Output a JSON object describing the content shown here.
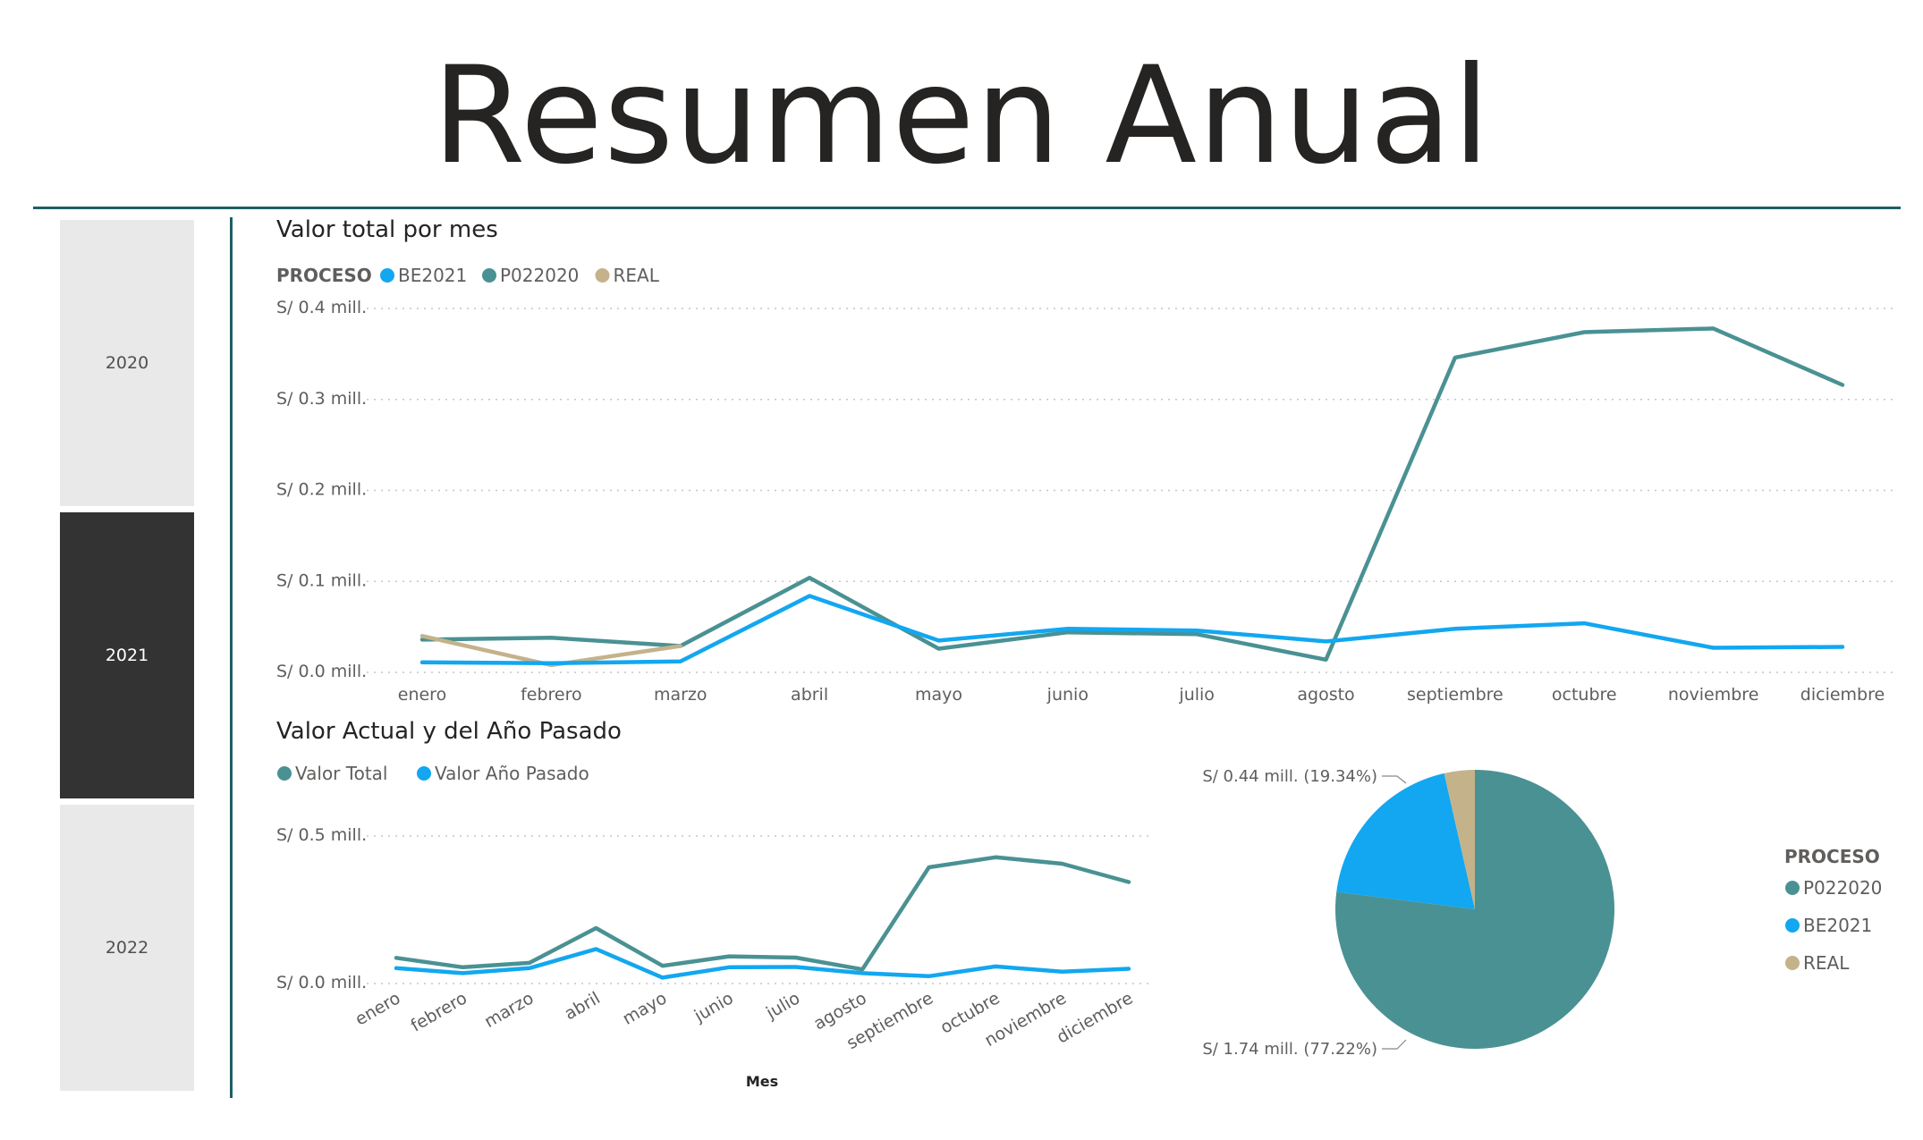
{
  "page": {
    "title": "Resumen Anual"
  },
  "slicer": {
    "items": [
      "2020",
      "2021",
      "2022"
    ],
    "selected": "2021"
  },
  "chart_data": [
    {
      "type": "line",
      "title": "Valor total por mes",
      "legend_title": "PROCESO",
      "legend_position": "top-left",
      "categories": [
        "enero",
        "febrero",
        "marzo",
        "abril",
        "mayo",
        "junio",
        "julio",
        "agosto",
        "septiembre",
        "octubre",
        "noviembre",
        "diciembre"
      ],
      "y_ticks": [
        "S/ 0.0 mill.",
        "S/ 0.1 mill.",
        "S/ 0.2 mill.",
        "S/ 0.3 mill.",
        "S/ 0.4 mill."
      ],
      "ylim": [
        0,
        0.4
      ],
      "grid": true,
      "series": [
        {
          "name": "BE2021",
          "color": "#12a7f0",
          "values": [
            0.011,
            0.01,
            0.012,
            0.084,
            0.035,
            0.048,
            0.046,
            0.034,
            0.048,
            0.054,
            0.027,
            0.028
          ]
        },
        {
          "name": "P022020",
          "color": "#4a9193",
          "values": [
            0.036,
            0.038,
            0.029,
            0.104,
            0.026,
            0.044,
            0.042,
            0.014,
            0.346,
            0.374,
            0.378,
            0.316
          ]
        },
        {
          "name": "REAL",
          "color": "#c4b28a",
          "values": [
            0.04,
            0.008,
            0.029,
            null,
            null,
            null,
            null,
            null,
            null,
            null,
            null,
            null
          ]
        }
      ]
    },
    {
      "type": "line",
      "title": "Valor Actual y del Año Pasado",
      "legend_position": "top-left",
      "xlabel": "Mes",
      "categories": [
        "enero",
        "febrero",
        "marzo",
        "abril",
        "mayo",
        "junio",
        "julio",
        "agosto",
        "septiembre",
        "octubre",
        "noviembre",
        "diciembre"
      ],
      "y_ticks": [
        "S/ 0.0 mill.",
        "S/ 0.5 mill."
      ],
      "ylim": [
        0,
        0.5
      ],
      "grid": true,
      "series": [
        {
          "name": "Valor Total",
          "color": "#4a9193",
          "values": [
            0.087,
            0.055,
            0.07,
            0.188,
            0.06,
            0.092,
            0.088,
            0.048,
            0.394,
            0.428,
            0.406,
            0.344
          ]
        },
        {
          "name": "Valor Año Pasado",
          "color": "#12a7f0",
          "values": [
            0.052,
            0.035,
            0.052,
            0.117,
            0.02,
            0.055,
            0.056,
            0.035,
            0.025,
            0.058,
            0.04,
            0.05
          ]
        }
      ]
    },
    {
      "type": "pie",
      "legend_title": "PROCESO",
      "legend_position": "right",
      "slices": [
        {
          "name": "P022020",
          "value": 1.74,
          "percent": 77.22,
          "color": "#4a9193",
          "label": "S/ 1.74 mill. (77.22%)"
        },
        {
          "name": "BE2021",
          "value": 0.44,
          "percent": 19.34,
          "color": "#12a7f0",
          "label": "S/ 0.44 mill. (19.34%)"
        },
        {
          "name": "REAL",
          "value": 0.08,
          "percent": 3.44,
          "color": "#c4b28a",
          "label": ""
        }
      ]
    }
  ]
}
